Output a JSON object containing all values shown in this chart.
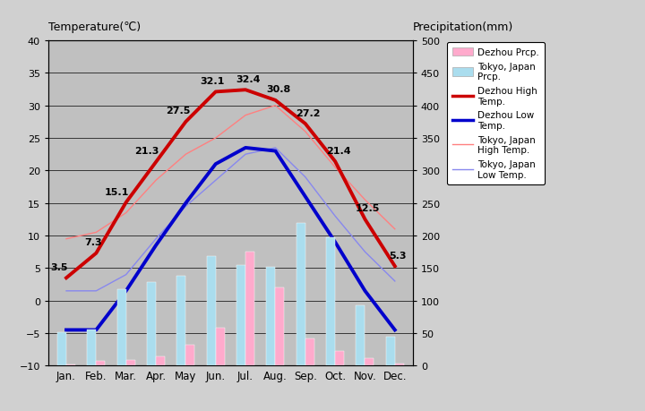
{
  "months": [
    "Jan.",
    "Feb.",
    "Mar.",
    "Apr.",
    "May",
    "Jun.",
    "Jul.",
    "Aug.",
    "Sep.",
    "Oct.",
    "Nov.",
    "Dec."
  ],
  "dezhou_high": [
    3.5,
    7.3,
    15.1,
    21.3,
    27.5,
    32.1,
    32.4,
    30.8,
    27.2,
    21.4,
    12.5,
    5.3
  ],
  "dezhou_low": [
    -4.5,
    -4.5,
    1.5,
    8.5,
    15.0,
    21.0,
    23.5,
    23.0,
    16.0,
    9.0,
    1.5,
    -4.5
  ],
  "tokyo_high": [
    9.5,
    10.5,
    13.5,
    18.5,
    22.5,
    25.0,
    28.5,
    30.0,
    26.0,
    20.5,
    15.5,
    11.0
  ],
  "tokyo_low": [
    1.5,
    1.5,
    4.0,
    9.5,
    14.5,
    18.5,
    22.5,
    23.5,
    19.0,
    13.0,
    7.5,
    3.0
  ],
  "dezhou_prcp": [
    2.0,
    8.0,
    9.0,
    14.0,
    32.0,
    58.0,
    175.0,
    120.0,
    42.0,
    22.0,
    12.0,
    3.0
  ],
  "tokyo_prcp": [
    52.0,
    56.0,
    118.0,
    128.0,
    138.0,
    168.0,
    154.0,
    152.0,
    220.0,
    197.0,
    93.0,
    44.0
  ],
  "temp_ylim": [
    -10,
    40
  ],
  "prcp_ylim": [
    0,
    500
  ],
  "temp_yticks": [
    -10,
    -5,
    0,
    5,
    10,
    15,
    20,
    25,
    30,
    35,
    40
  ],
  "prcp_yticks": [
    0,
    50,
    100,
    150,
    200,
    250,
    300,
    350,
    400,
    450,
    500
  ],
  "dezhou_high_color": "#cc0000",
  "dezhou_low_color": "#0000cc",
  "tokyo_high_color": "#ff8080",
  "tokyo_low_color": "#8888ee",
  "dezhou_prcp_color": "#ffaacc",
  "tokyo_prcp_color": "#aaddee",
  "label_left": "Temperature(℃)",
  "label_right": "Precipitation(mm)",
  "fig_bg": "#d0d0d0",
  "plot_bg": "#c0c0c0",
  "legend_entries": [
    "Dezhou Prcp.",
    "Tokyo, Japan\nPrcp.",
    "Dezhou High\nTemp.",
    "Dezhou Low\nTemp.",
    "Tokyo, Japan\nHigh Temp.",
    "Tokyo, Japan\nLow Temp."
  ]
}
